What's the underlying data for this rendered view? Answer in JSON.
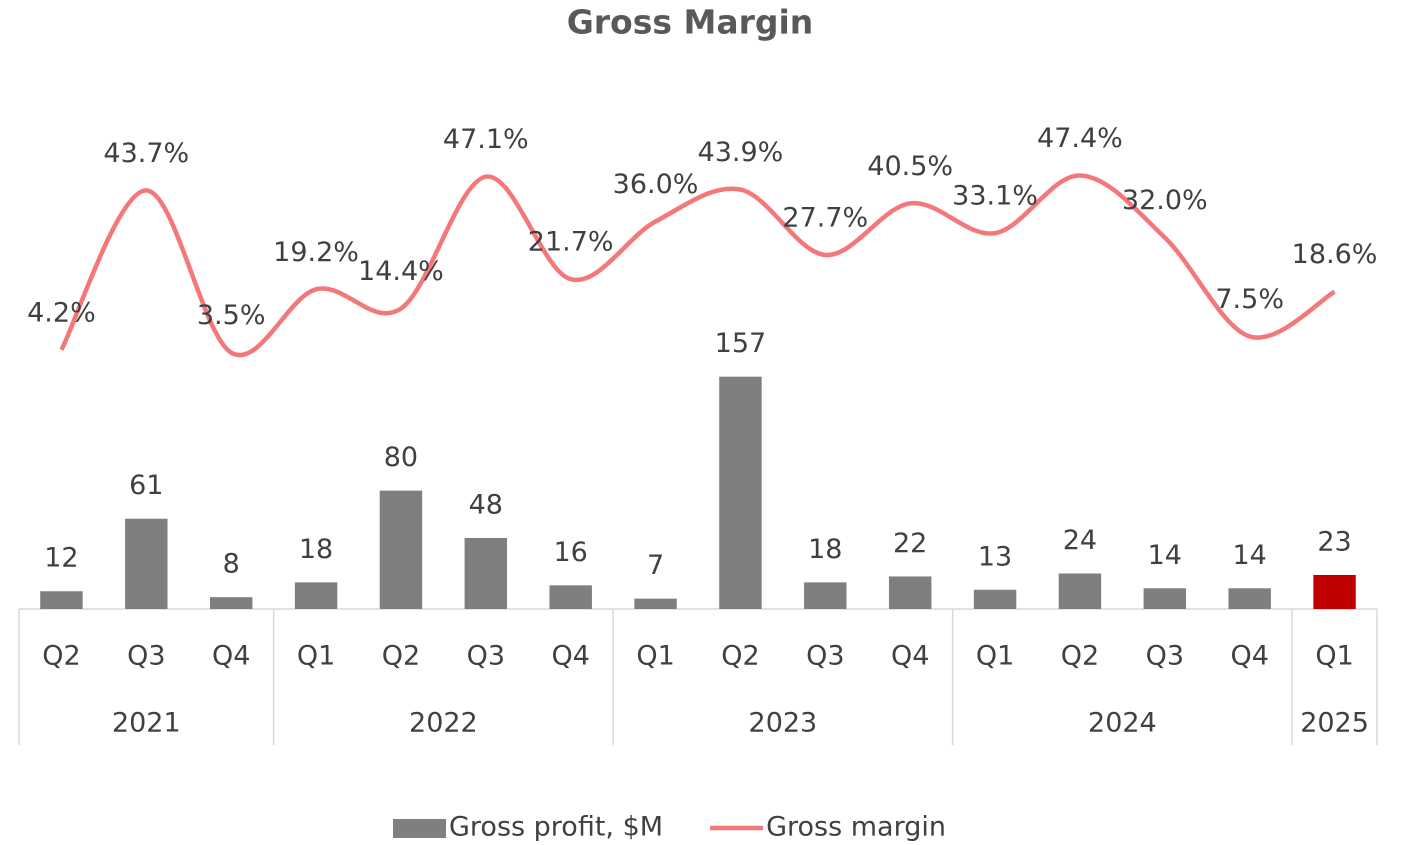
{
  "chart_data": {
    "type": "bar_line",
    "title": "Gross Margin",
    "groups": [
      {
        "label": "2021",
        "categories": [
          "Q2",
          "Q3",
          "Q4"
        ]
      },
      {
        "label": "2022",
        "categories": [
          "Q1",
          "Q2",
          "Q3",
          "Q4"
        ]
      },
      {
        "label": "2023",
        "categories": [
          "Q1",
          "Q2",
          "Q3",
          "Q4"
        ]
      },
      {
        "label": "2024",
        "categories": [
          "Q1",
          "Q2",
          "Q3",
          "Q4"
        ]
      },
      {
        "label": "2025",
        "categories": [
          "Q1"
        ]
      }
    ],
    "series": [
      {
        "name": "Gross profit, $M",
        "type": "bar",
        "color": "#7f7f7f",
        "colors": [
          "#7f7f7f",
          "#7f7f7f",
          "#7f7f7f",
          "#7f7f7f",
          "#7f7f7f",
          "#7f7f7f",
          "#7f7f7f",
          "#7f7f7f",
          "#7f7f7f",
          "#7f7f7f",
          "#7f7f7f",
          "#7f7f7f",
          "#7f7f7f",
          "#7f7f7f",
          "#7f7f7f",
          "#c00000"
        ],
        "values": [
          12,
          61,
          8,
          18,
          80,
          48,
          16,
          7,
          157,
          18,
          22,
          13,
          24,
          14,
          14,
          23
        ]
      },
      {
        "name": "Gross margin",
        "type": "line",
        "axis": "y2",
        "color": "#f4777a",
        "values": [
          4.2,
          43.7,
          3.5,
          19.2,
          14.4,
          47.1,
          21.7,
          36.0,
          43.9,
          27.7,
          40.5,
          33.1,
          47.4,
          32.0,
          7.5,
          18.6
        ],
        "value_labels": [
          "4.2%",
          "43.7%",
          "3.5%",
          "19.2%",
          "14.4%",
          "47.1%",
          "21.7%",
          "36.0%",
          "43.9%",
          "27.7%",
          "40.5%",
          "33.1%",
          "47.4%",
          "32.0%",
          "7.5%",
          "18.6%"
        ]
      }
    ],
    "ylim": [
      0,
      371
    ],
    "y2lim": [
      -60,
      76
    ],
    "legend": "bottom"
  }
}
